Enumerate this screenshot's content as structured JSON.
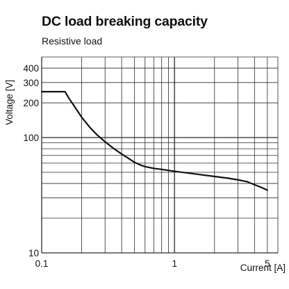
{
  "chart_data": {
    "type": "line",
    "title": "DC load breaking capacity",
    "subtitle": "Resistive load",
    "xlabel": "Current [A]",
    "ylabel": "Voltage [V]",
    "x_scale": "log",
    "y_scale": "log",
    "xlim": [
      0.1,
      6
    ],
    "ylim": [
      10,
      500
    ],
    "grid": true,
    "x_ticks": [
      {
        "value": 0.1,
        "label": "0.1"
      },
      {
        "value": 1,
        "label": "1"
      },
      {
        "value": 5,
        "label": "5"
      }
    ],
    "y_ticks": [
      {
        "value": 10,
        "label": "10"
      },
      {
        "value": 100,
        "label": "100"
      },
      {
        "value": 200,
        "label": "200"
      },
      {
        "value": 300,
        "label": "300"
      },
      {
        "value": 400,
        "label": "400"
      }
    ],
    "x_gridlines": [
      0.1,
      0.2,
      0.3,
      0.4,
      0.5,
      0.6,
      0.7,
      0.8,
      0.9,
      1,
      2,
      3,
      4,
      5,
      6
    ],
    "y_gridlines": [
      10,
      20,
      30,
      40,
      50,
      60,
      70,
      80,
      90,
      100,
      200,
      300,
      400,
      500
    ],
    "series": [
      {
        "color": "#111111",
        "x": [
          0.1,
          0.15,
          0.16,
          0.18,
          0.2,
          0.23,
          0.26,
          0.3,
          0.35,
          0.4,
          0.45,
          0.5,
          0.55,
          0.6,
          0.7,
          0.8,
          1,
          1.5,
          2,
          2.5,
          3,
          3.5,
          4,
          4.5,
          5
        ],
        "y": [
          250,
          250,
          220,
          180,
          150,
          123,
          106,
          92,
          80,
          72,
          66,
          61,
          58,
          56,
          54,
          53,
          51,
          48,
          46,
          44.5,
          43,
          41.5,
          39,
          37,
          35
        ]
      }
    ]
  }
}
